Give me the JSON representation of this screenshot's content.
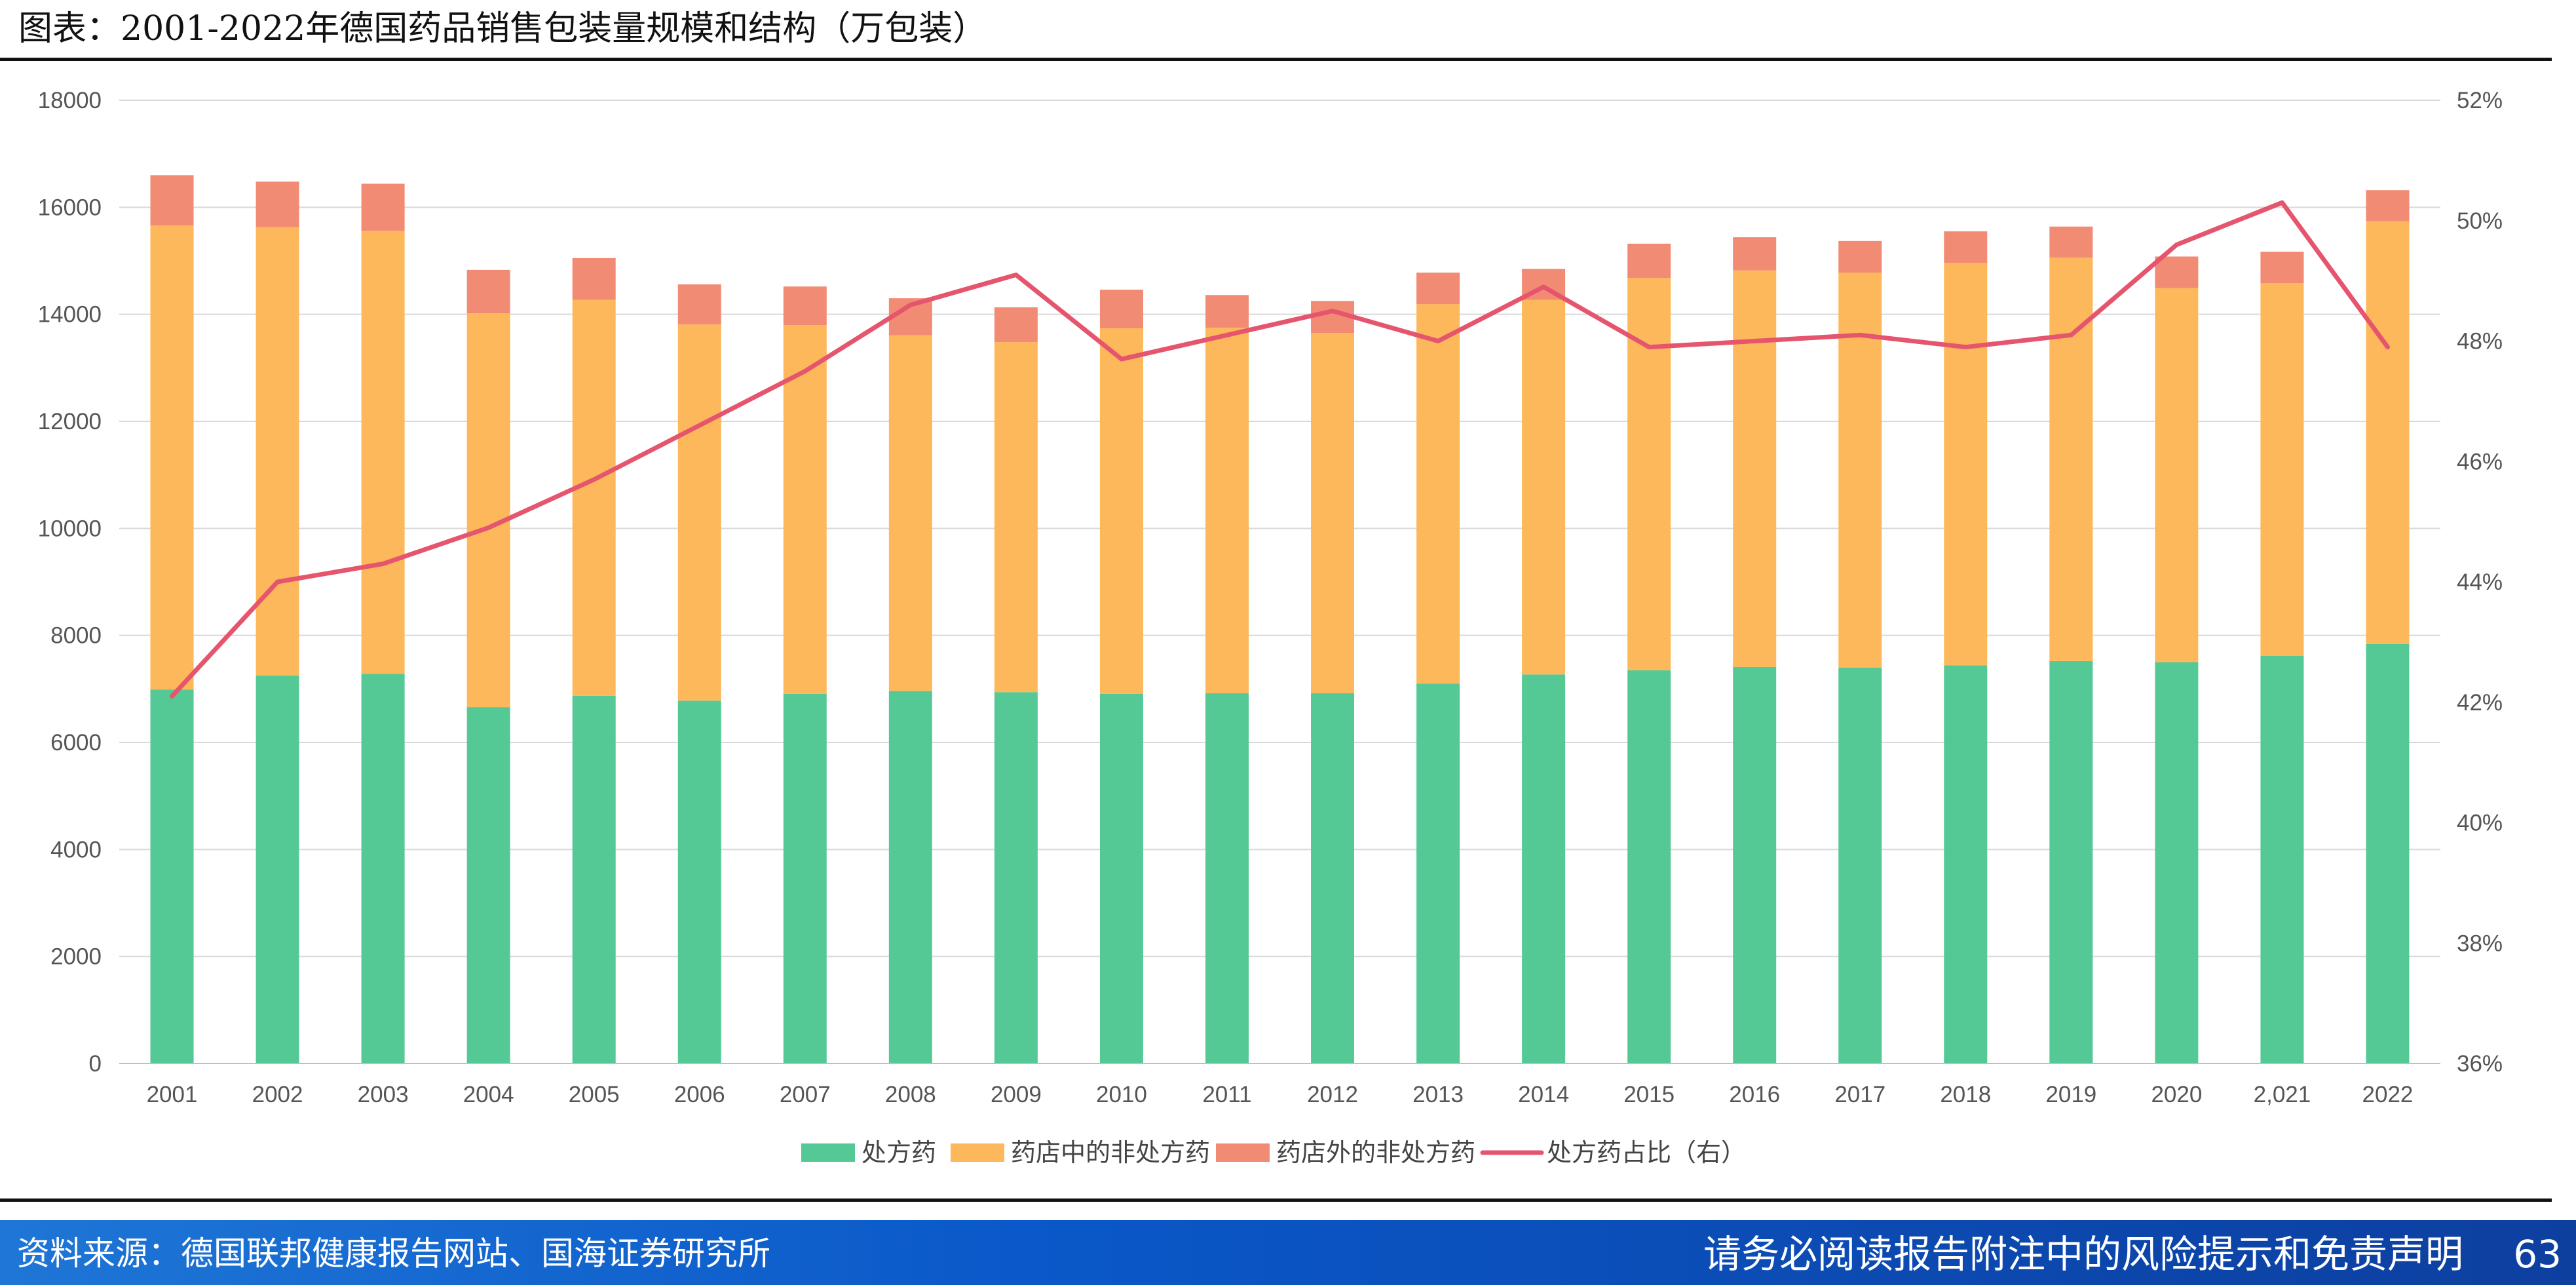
{
  "header": {
    "title": "图表：2001-2022年德国药品销售包装量规模和结构（万包装）"
  },
  "footer": {
    "source": "资料来源：德国联邦健康报告网站、国海证券研究所",
    "disclaimer": "请务必阅读报告附注中的风险提示和免责声明",
    "page_number": "63"
  },
  "colors": {
    "rx": "#55c995",
    "otc_pharmacy": "#fdb85c",
    "otc_outside": "#f28b73",
    "share_line": "#e5566e"
  },
  "chart_data": {
    "type": "bar",
    "stacked": true,
    "title": "2001-2022年德国药品销售包装量规模和结构（万包装）",
    "categories": [
      "2001",
      "2002",
      "2003",
      "2004",
      "2005",
      "2006",
      "2007",
      "2008",
      "2009",
      "2010",
      "2011",
      "2012",
      "2013",
      "2014",
      "2015",
      "2016",
      "2017",
      "2018",
      "2019",
      "2020",
      "2,021",
      "2022"
    ],
    "series": [
      {
        "name": "处方药",
        "type": "bar",
        "axis": "left",
        "values": [
          6990,
          7250,
          7280,
          6660,
          6870,
          6780,
          6910,
          6960,
          6940,
          6910,
          6920,
          6920,
          7100,
          7270,
          7350,
          7410,
          7400,
          7440,
          7520,
          7500,
          7620,
          7840
        ]
      },
      {
        "name": "药店中的非处方药",
        "type": "bar",
        "axis": "left",
        "values": [
          8670,
          8380,
          8280,
          7360,
          7400,
          7030,
          6890,
          6650,
          6540,
          6830,
          6830,
          6730,
          7090,
          7000,
          7330,
          7410,
          7380,
          7520,
          7540,
          6990,
          6960,
          7900
        ]
      },
      {
        "name": "药店外的非处方药",
        "type": "bar",
        "axis": "left",
        "values": [
          940,
          850,
          880,
          810,
          780,
          750,
          720,
          690,
          650,
          720,
          610,
          600,
          590,
          580,
          640,
          620,
          590,
          590,
          580,
          590,
          590,
          580
        ]
      },
      {
        "name": "处方药占比（右）",
        "type": "line",
        "axis": "right",
        "values": [
          42.1,
          44.0,
          44.3,
          44.9,
          45.7,
          46.6,
          47.5,
          48.6,
          49.1,
          47.7,
          48.1,
          48.5,
          48.0,
          48.9,
          47.9,
          48.0,
          48.1,
          47.9,
          48.1,
          49.6,
          50.3,
          47.9
        ]
      }
    ],
    "y_left": {
      "min": 0,
      "max": 18000,
      "step": 2000,
      "ticks": [
        "0",
        "2000",
        "4000",
        "6000",
        "8000",
        "10000",
        "12000",
        "14000",
        "16000",
        "18000"
      ]
    },
    "y_right": {
      "min": 36,
      "max": 52,
      "step": 2,
      "ticks": [
        "36%",
        "38%",
        "40%",
        "42%",
        "44%",
        "46%",
        "48%",
        "50%",
        "52%"
      ]
    },
    "grid": true,
    "legend_position": "bottom"
  }
}
